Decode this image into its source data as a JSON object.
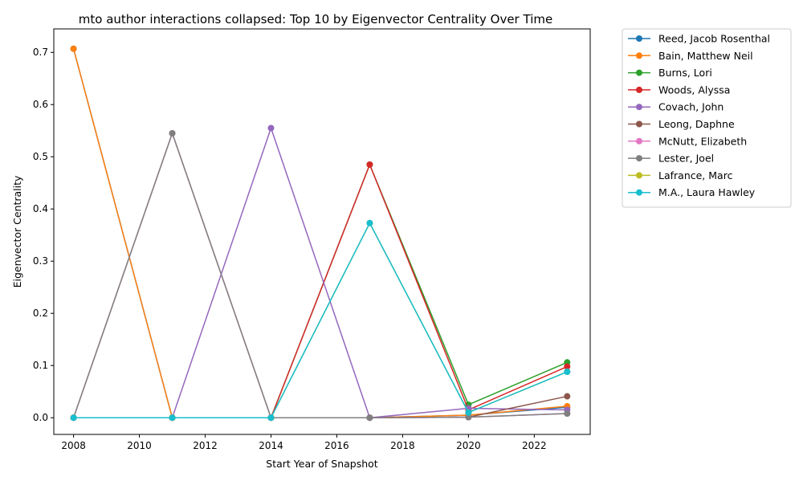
{
  "chart_data": {
    "type": "line",
    "title": "mto author interactions collapsed: Top 10 by Eigenvector Centrality Over Time",
    "xlabel": "Start Year of Snapshot",
    "ylabel": "Eigenvector Centrality",
    "xlim": [
      2007.4,
      2023.7
    ],
    "ylim": [
      -0.032,
      0.745
    ],
    "x_ticks": [
      2008,
      2010,
      2012,
      2014,
      2016,
      2018,
      2020,
      2022
    ],
    "y_ticks": [
      0.0,
      0.1,
      0.2,
      0.3,
      0.4,
      0.5,
      0.6,
      0.7
    ],
    "y_tick_labels": [
      "0.0",
      "0.1",
      "0.2",
      "0.3",
      "0.4",
      "0.5",
      "0.6",
      "0.7"
    ],
    "grid": false,
    "legend_position": "outside-top-right",
    "x": [
      2008,
      2011,
      2014,
      2017,
      2020,
      2023
    ],
    "series": [
      {
        "name": "Reed, Jacob Rosenthal",
        "color": "#1f77b4",
        "values": [
          0.707,
          0.0,
          0.0,
          0.0,
          0.005,
          0.02
        ]
      },
      {
        "name": "Bain, Matthew Neil",
        "color": "#ff7f0e",
        "values": [
          0.707,
          0.0,
          0.0,
          0.0,
          0.005,
          0.022
        ]
      },
      {
        "name": "Burns, Lori",
        "color": "#2ca02c",
        "values": [
          0.0,
          0.0,
          0.0,
          0.485,
          0.025,
          0.106
        ]
      },
      {
        "name": "Woods, Alyssa",
        "color": "#d62728",
        "values": [
          0.0,
          0.0,
          0.0,
          0.485,
          0.015,
          0.098
        ]
      },
      {
        "name": "Covach, John",
        "color": "#9467bd",
        "values": [
          0.0,
          0.0,
          0.555,
          0.0,
          0.018,
          0.015
        ]
      },
      {
        "name": "Leong, Daphne",
        "color": "#8c564b",
        "values": [
          0.0,
          0.0,
          0.0,
          0.0,
          0.001,
          0.041
        ]
      },
      {
        "name": "McNutt, Elizabeth",
        "color": "#e377c2",
        "values": [
          0.0,
          0.545,
          0.0,
          0.0,
          0.001,
          0.008
        ]
      },
      {
        "name": "Lester, Joel",
        "color": "#7f7f7f",
        "values": [
          0.0,
          0.545,
          0.0,
          0.0,
          0.001,
          0.008
        ]
      },
      {
        "name": "Lafrance, Marc",
        "color": "#bcbd22",
        "values": [
          0.0,
          0.0,
          0.0,
          0.373,
          0.01,
          0.088
        ]
      },
      {
        "name": "M.A., Laura Hawley",
        "color": "#17becf",
        "values": [
          0.0,
          0.0,
          0.0,
          0.373,
          0.01,
          0.088
        ]
      }
    ]
  }
}
